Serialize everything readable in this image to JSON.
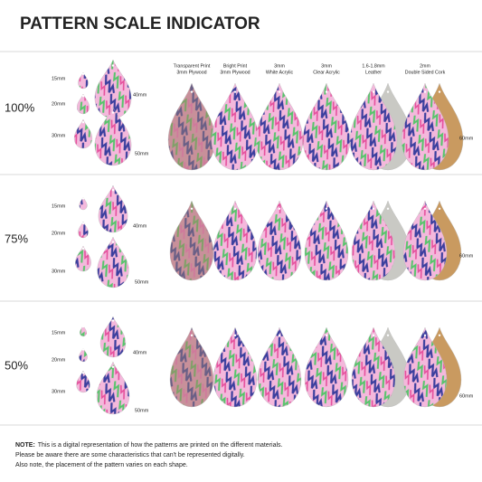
{
  "header": {
    "title": "PATTERN SCALE INDICATOR"
  },
  "materials": [
    {
      "line1": "Transparent Print",
      "line2": "3mm Plywood"
    },
    {
      "line1": "Bright Print",
      "line2": "3mm Plywood"
    },
    {
      "line1": "3mm",
      "line2": "White Acrylic"
    },
    {
      "line1": "3mm",
      "line2": "Clear Acrylic"
    },
    {
      "line1": "1.6-1.8mm",
      "line2": "Leather"
    },
    {
      "line1": "2mm",
      "line2": "Double Sided Cork"
    }
  ],
  "size_labels": [
    "15mm",
    "20mm",
    "30mm",
    "40mm",
    "50mm",
    "60mm"
  ],
  "sections": [
    {
      "scale": "100%"
    },
    {
      "scale": "75%"
    },
    {
      "scale": "50%"
    }
  ],
  "note": {
    "label": "NOTE:",
    "lines": [
      "This is a digital representation of how the patterns are printed on the different materials.",
      "Please be aware there are some characteristics that can't be represented digitally.",
      "Also note, the placement of the pattern varies on each shape."
    ]
  }
}
